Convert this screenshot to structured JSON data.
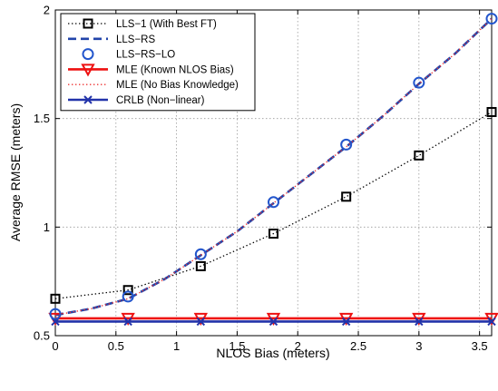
{
  "chart_data": {
    "type": "line",
    "title": "",
    "xlabel": "NLOS Bias (meters)",
    "ylabel": "Average RMSE (meters)",
    "xlim": [
      0,
      3.6
    ],
    "ylim": [
      0.5,
      2
    ],
    "xticks": [
      0,
      0.5,
      1,
      1.5,
      2,
      2.5,
      3,
      3.5
    ],
    "xtick_labels": [
      "0",
      "0.5",
      "1",
      "1.5",
      "2",
      "2.5",
      "3",
      "3.5"
    ],
    "yticks": [
      0.5,
      1,
      1.5,
      2
    ],
    "ytick_labels": [
      "0.5",
      "1",
      "1.5",
      "2"
    ],
    "grid": true,
    "legend_placement": "top-left",
    "series": [
      {
        "name": "LLS−1 (With Best FT)",
        "color": "#000000",
        "line_style": "dotted",
        "marker": "square",
        "x": [
          0,
          0.6,
          1.2,
          1.8,
          2.4,
          3.0,
          3.6
        ],
        "y": [
          0.67,
          0.71,
          0.82,
          0.97,
          1.14,
          1.33,
          1.53
        ]
      },
      {
        "name": "LLS−RS",
        "color": "#2244aa",
        "line_style": "dashed",
        "marker": "none",
        "x": [
          0,
          0.3,
          0.6,
          0.9,
          1.2,
          1.5,
          1.8,
          2.1,
          2.4,
          2.7,
          3.0,
          3.3,
          3.6
        ],
        "y": [
          0.595,
          0.625,
          0.67,
          0.76,
          0.87,
          0.98,
          1.11,
          1.24,
          1.37,
          1.51,
          1.66,
          1.8,
          1.96
        ]
      },
      {
        "name": "LLS−RS−LO",
        "color": "#2255cc",
        "line_style": "none",
        "marker": "circle",
        "x": [
          0,
          0.6,
          1.2,
          1.8,
          2.4,
          3.0,
          3.6
        ],
        "y": [
          0.6,
          0.68,
          0.875,
          1.115,
          1.38,
          1.665,
          1.96
        ]
      },
      {
        "name": "MLE (Known NLOS Bias)",
        "color": "#ee1111",
        "line_style": "solid",
        "marker": "triangle-down",
        "x": [
          0,
          0.6,
          1.2,
          1.8,
          2.4,
          3.0,
          3.6
        ],
        "y": [
          0.58,
          0.58,
          0.58,
          0.58,
          0.58,
          0.58,
          0.58
        ]
      },
      {
        "name": "MLE (No Bias Knowledge)",
        "color": "#ee3333",
        "line_style": "dotted",
        "marker": "none",
        "x": [
          0,
          0.3,
          0.6,
          0.9,
          1.2,
          1.5,
          1.8,
          2.1,
          2.4,
          2.7,
          3.0,
          3.3,
          3.6
        ],
        "y": [
          0.595,
          0.625,
          0.67,
          0.76,
          0.87,
          0.98,
          1.11,
          1.24,
          1.37,
          1.51,
          1.66,
          1.8,
          1.96
        ]
      },
      {
        "name": "CRLB (Non−linear)",
        "color": "#2233aa",
        "line_style": "solid",
        "marker": "x",
        "x": [
          0,
          0.6,
          1.2,
          1.8,
          2.4,
          3.0,
          3.6
        ],
        "y": [
          0.565,
          0.565,
          0.565,
          0.565,
          0.565,
          0.565,
          0.565
        ]
      }
    ]
  }
}
